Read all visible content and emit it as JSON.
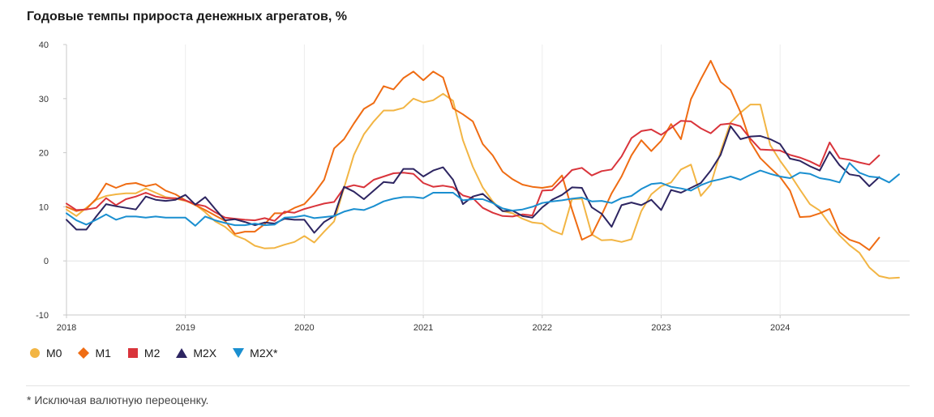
{
  "header": {
    "title": "Годовые темпы прироста денежных агрегатов, %"
  },
  "footnote": "* Исключая валютную переоценку.",
  "legend": [
    {
      "label": "M0",
      "marker": "circle",
      "color": "#f2b544"
    },
    {
      "label": "M1",
      "marker": "diamond",
      "color": "#ef6c13"
    },
    {
      "label": "M2",
      "marker": "square",
      "color": "#d9343b"
    },
    {
      "label": "M2X",
      "marker": "triangle-up",
      "color": "#2d2561"
    },
    {
      "label": "M2X*",
      "marker": "triangle-down",
      "color": "#1a8fd0"
    }
  ],
  "chart_data": {
    "type": "line",
    "title": "Годовые темпы прироста денежных агрегатов, %",
    "xlabel": "",
    "ylabel": "",
    "x_start": "2018-01",
    "x_ticks": [
      "2018",
      "2019",
      "2020",
      "2021",
      "2022",
      "2023",
      "2024"
    ],
    "xlim": [
      "2018-01",
      "2024-12"
    ],
    "ylim": [
      -10,
      40
    ],
    "y_ticks": [
      -10,
      0,
      10,
      20,
      30,
      40
    ],
    "grid": "vertical at years, horizontal at 0",
    "legend_position": "bottom-left",
    "series": [
      {
        "name": "M0",
        "color": "#f2b544",
        "values": [
          9.5,
          8.3,
          9.8,
          11.3,
          12,
          12.3,
          12.5,
          12.5,
          13.4,
          12.6,
          11.8,
          11.5,
          11.1,
          10.4,
          9,
          7.3,
          6.3,
          4.7,
          4,
          2.8,
          2.3,
          2.4,
          3,
          3.5,
          4.6,
          3.4,
          5.4,
          7.3,
          13.5,
          19.6,
          23.4,
          25.8,
          27.8,
          27.8,
          28.3,
          30,
          29.3,
          29.7,
          30.9,
          29.6,
          22.3,
          17.4,
          13.6,
          11,
          9.2,
          8.8,
          7.8,
          7.1,
          6.9,
          5.6,
          4.9,
          11.4,
          11.5,
          4.9,
          3.8,
          3.9,
          3.5,
          4,
          9.2,
          12.3,
          13.8,
          14.5,
          16.9,
          17.8,
          12,
          14.1,
          20.2,
          25.6,
          27.4,
          28.9,
          28.9,
          21.4,
          18.5,
          16,
          13.2,
          10.5,
          9.3,
          6.8,
          4.7,
          2.9,
          1.5,
          -1.2,
          -2.8,
          -3.2,
          -3.1
        ]
      },
      {
        "name": "M1",
        "color": "#ef6c13",
        "values": [
          10,
          9.2,
          9.6,
          11.5,
          14.3,
          13.5,
          14.2,
          14.4,
          13.8,
          14.2,
          13,
          12.3,
          11.2,
          10.3,
          9.4,
          8.4,
          7.4,
          5,
          5.4,
          5.4,
          6.8,
          8.8,
          8.8,
          9.8,
          10.5,
          12.5,
          15,
          20.8,
          22.5,
          25.4,
          28.1,
          29.2,
          32.3,
          31.7,
          33.8,
          35,
          33.4,
          35,
          33.9,
          28.2,
          27.1,
          25.8,
          21.6,
          19.5,
          16.5,
          15.1,
          14.1,
          13.7,
          13.5,
          13.8,
          15.8,
          9.5,
          3.9,
          4.8,
          8.5,
          12.5,
          15.6,
          19.5,
          22.3,
          20.3,
          22.2,
          25.3,
          22.5,
          29.9,
          33.6,
          37,
          33.1,
          31.6,
          27.5,
          22,
          19,
          17.2,
          15.5,
          13,
          8.1,
          8.2,
          8.8,
          9.6,
          5.3,
          3.9,
          3.3,
          2,
          4.3
        ]
      },
      {
        "name": "M2",
        "color": "#d9343b",
        "values": [
          10.6,
          9.4,
          9.5,
          9.8,
          11.6,
          10.3,
          11.4,
          11.9,
          12.6,
          11.9,
          11.6,
          11.6,
          11.2,
          10.5,
          10.1,
          9,
          8,
          7.8,
          7.6,
          7.5,
          7.9,
          7.4,
          9.1,
          8.9,
          9.6,
          10.1,
          10.6,
          10.9,
          13.5,
          14,
          13.6,
          15,
          15.6,
          16.2,
          16.3,
          16.1,
          14.4,
          13.7,
          13.9,
          13.6,
          12.1,
          11.6,
          9.8,
          8.9,
          8.3,
          8.2,
          8.6,
          8.4,
          13,
          13.1,
          14.9,
          16.8,
          17.2,
          15.8,
          16.6,
          16.9,
          19.3,
          22.7,
          24,
          24.3,
          23.3,
          24.6,
          25.9,
          25.8,
          24.5,
          23.6,
          25.2,
          25.4,
          24.9,
          22.6,
          20.6,
          20.5,
          20.4,
          19.6,
          19.1,
          18.4,
          17.5,
          21.9,
          19,
          18.7,
          18.2,
          17.8,
          19.5
        ]
      },
      {
        "name": "M2X",
        "color": "#2d2561",
        "values": [
          7.6,
          5.8,
          5.8,
          8.2,
          10.5,
          10.1,
          9.8,
          9.5,
          11.9,
          11.3,
          11.1,
          11.3,
          12.2,
          10.4,
          11.8,
          9.6,
          7.5,
          7.7,
          7.2,
          6.6,
          7.1,
          6.9,
          7.8,
          7.6,
          7.6,
          5.2,
          7.2,
          8.3,
          13.7,
          12.8,
          11.4,
          13,
          14.6,
          14.4,
          17,
          17,
          15.6,
          16.7,
          17.3,
          15,
          10.5,
          11.9,
          12.4,
          10.8,
          9.2,
          9.3,
          8.3,
          8,
          9.9,
          11.3,
          12.2,
          13.6,
          13.5,
          9.9,
          8.7,
          6.3,
          10.3,
          10.8,
          10.3,
          11.3,
          9.4,
          13.1,
          12.6,
          13.5,
          14.4,
          16.7,
          19.6,
          24.9,
          22.5,
          23,
          23.1,
          22.5,
          21.6,
          18.9,
          18.5,
          17.5,
          16.7,
          20.2,
          17.7,
          16,
          15.7,
          13.8,
          15.5
        ]
      },
      {
        "name": "M2X*",
        "color": "#1a8fd0",
        "values": [
          8.8,
          7.5,
          6.7,
          7.6,
          8.6,
          7.6,
          8.2,
          8.2,
          8,
          8.2,
          8,
          8,
          8,
          6.5,
          8.2,
          7.5,
          7,
          6.6,
          6.6,
          6.9,
          6.6,
          6.7,
          8,
          8.1,
          8.4,
          7.9,
          8.1,
          8.3,
          9.1,
          9.6,
          9.4,
          10.1,
          11,
          11.5,
          11.8,
          11.8,
          11.6,
          12.6,
          12.6,
          12.6,
          11.2,
          11.4,
          11.4,
          10.7,
          9.7,
          9.3,
          9.5,
          10,
          10.7,
          11,
          11.2,
          11.5,
          11.7,
          11,
          11.1,
          10.7,
          11.6,
          12,
          13.3,
          14.2,
          14.4,
          13.7,
          13.4,
          13,
          14,
          14.7,
          15.1,
          15.6,
          15,
          15.9,
          16.7,
          16.1,
          15.6,
          15.3,
          16.3,
          16.1,
          15.3,
          15,
          14.5,
          18.1,
          16.3,
          15.6,
          15.4,
          14.5,
          16
        ]
      }
    ]
  }
}
